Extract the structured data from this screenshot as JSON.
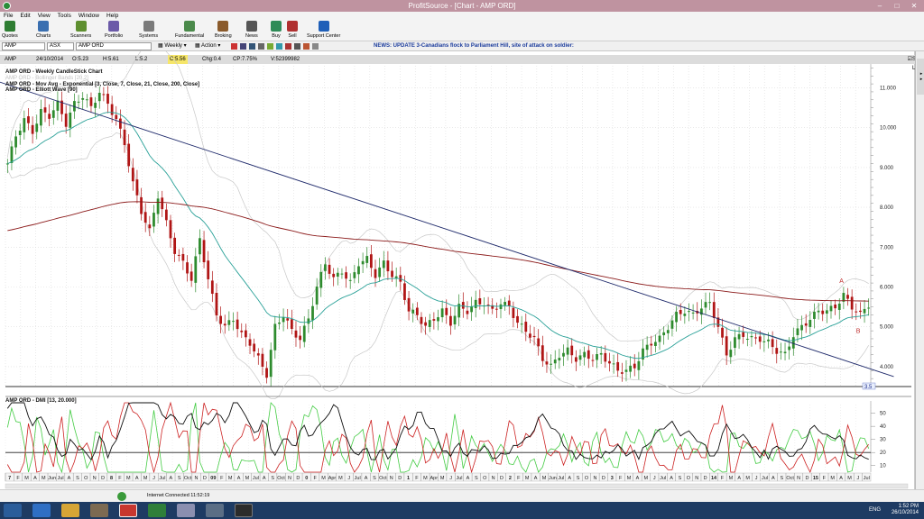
{
  "window": {
    "title": "ProfitSource - [Chart - AMP ORD]"
  },
  "menu": [
    "File",
    "Edit",
    "View",
    "Tools",
    "Window",
    "Help"
  ],
  "toolbar": [
    {
      "label": "Quotes",
      "icon": "quotes-icon",
      "color": "#2e7d32"
    },
    {
      "label": "Charts",
      "icon": "charts-icon",
      "color": "#3a6fb0"
    },
    {
      "label": "Scanners",
      "icon": "scanners-icon",
      "color": "#5e8f2f"
    },
    {
      "label": "Portfolio",
      "icon": "portfolio-icon",
      "color": "#6b5aa8"
    },
    {
      "label": "Systems",
      "icon": "systems-icon",
      "color": "#7a7a7a"
    },
    {
      "label": "Fundamental",
      "icon": "fundamental-icon",
      "color": "#4b8a4b"
    },
    {
      "label": "Broking",
      "icon": "broking-icon",
      "color": "#8a5a2b"
    },
    {
      "label": "News",
      "icon": "news-icon",
      "color": "#555555"
    },
    {
      "label": "Buy",
      "icon": "buy-icon",
      "color": "#2e8b57"
    },
    {
      "label": "Sell",
      "icon": "sell-icon",
      "color": "#b03030"
    },
    {
      "label": "Support Center",
      "icon": "help-icon",
      "color": "#1f5fb8"
    }
  ],
  "address": {
    "symbol": "AMP",
    "exchange": "ASX",
    "name": "AMP ORD",
    "weekly": "Weekly",
    "action": "Action",
    "news": "NEWS: UPDATE 3-Canadians flock to Parliament Hill, site of attack on soldier:"
  },
  "info": {
    "symbol": "AMP",
    "date": "24/10/2014",
    "open": "O:5.23",
    "high": "H:5.61",
    "low": "L:5.2",
    "close": "C:5.56",
    "chg": "Chg:0.4",
    "cp": "CP:7.75%",
    "vol": "V:52399982",
    "show_last": "Show Last"
  },
  "legend": [
    {
      "text": "AMP ORD - Weekly CandleStick Chart",
      "color": "#111111"
    },
    {
      "text": "AMP ORD - Bollinger Bands [20,2]",
      "ghost": true
    },
    {
      "text": "AMP ORD - Mov Avg - Exponential [3, Close, 7, Close, 21, Close, 200, Close]",
      "color": "#111111"
    },
    {
      "text": "AMP ORD - Elliott Wave [90]",
      "color": "#111111"
    }
  ],
  "indicator_label": "AMP ORD - DMI [13, 20.000]",
  "status": {
    "connection": "Internet Connected 11:52:19"
  },
  "taskbar": {
    "time": "1:52 PM",
    "date": "26/10/2014",
    "lang": "ENG"
  },
  "colors": {
    "bull": "#2e8b2e",
    "bear": "#b01515",
    "ema_fast": "#2aa198",
    "ema_slow": "#8b1a1a",
    "trend": "#1f2a6b",
    "bands": "#c8c8c8"
  },
  "chart_data": {
    "type": "candlestick",
    "ylim": [
      3.5,
      11.6
    ],
    "y_ticks": [
      4.0,
      5.0,
      6.0,
      7.0,
      8.0,
      9.0,
      10.0,
      11.0
    ],
    "current_price_label": "3.5",
    "close_path": [
      [
        0,
        9.1
      ],
      [
        2,
        9.8
      ],
      [
        4,
        10.2
      ],
      [
        6,
        9.9
      ],
      [
        8,
        10.4
      ],
      [
        10,
        10.3
      ],
      [
        12,
        10.6
      ],
      [
        14,
        10.1
      ],
      [
        16,
        10.6
      ],
      [
        18,
        10.8
      ],
      [
        20,
        10.5
      ],
      [
        22,
        10.9
      ],
      [
        24,
        10.6
      ],
      [
        26,
        10.2
      ],
      [
        28,
        9.6
      ],
      [
        30,
        8.6
      ],
      [
        32,
        7.9
      ],
      [
        34,
        7.4
      ],
      [
        36,
        8.3
      ],
      [
        38,
        7.6
      ],
      [
        40,
        6.9
      ],
      [
        42,
        6.6
      ],
      [
        44,
        6.2
      ],
      [
        46,
        7.2
      ],
      [
        48,
        6.2
      ],
      [
        50,
        5.3
      ],
      [
        52,
        5.0
      ],
      [
        54,
        5.2
      ],
      [
        56,
        4.8
      ],
      [
        58,
        4.6
      ],
      [
        60,
        4.2
      ],
      [
        62,
        3.8
      ],
      [
        64,
        5.0
      ],
      [
        66,
        5.3
      ],
      [
        68,
        4.9
      ],
      [
        70,
        4.7
      ],
      [
        72,
        5.2
      ],
      [
        74,
        6.0
      ],
      [
        76,
        6.6
      ],
      [
        78,
        6.2
      ],
      [
        80,
        6.4
      ],
      [
        82,
        6.1
      ],
      [
        84,
        6.6
      ],
      [
        86,
        6.7
      ],
      [
        88,
        6.3
      ],
      [
        90,
        6.6
      ],
      [
        92,
        6.3
      ],
      [
        94,
        6.1
      ],
      [
        96,
        5.4
      ],
      [
        98,
        5.3
      ],
      [
        100,
        5.0
      ],
      [
        102,
        5.2
      ],
      [
        104,
        5.4
      ],
      [
        106,
        5.1
      ],
      [
        108,
        5.5
      ],
      [
        110,
        5.4
      ],
      [
        112,
        5.6
      ],
      [
        114,
        5.6
      ],
      [
        116,
        5.4
      ],
      [
        118,
        5.6
      ],
      [
        120,
        5.5
      ],
      [
        122,
        5.1
      ],
      [
        124,
        4.9
      ],
      [
        126,
        4.7
      ],
      [
        128,
        4.2
      ],
      [
        130,
        4.0
      ],
      [
        132,
        4.3
      ],
      [
        134,
        4.4
      ],
      [
        136,
        4.2
      ],
      [
        138,
        4.3
      ],
      [
        140,
        4.2
      ],
      [
        142,
        4.3
      ],
      [
        144,
        4.1
      ],
      [
        146,
        3.9
      ],
      [
        148,
        3.9
      ],
      [
        150,
        4.0
      ],
      [
        152,
        4.4
      ],
      [
        154,
        4.6
      ],
      [
        156,
        4.7
      ],
      [
        158,
        5.0
      ],
      [
        160,
        5.3
      ],
      [
        162,
        5.4
      ],
      [
        164,
        5.3
      ],
      [
        166,
        5.5
      ],
      [
        168,
        5.6
      ],
      [
        170,
        5.0
      ],
      [
        172,
        4.3
      ],
      [
        174,
        4.7
      ],
      [
        176,
        4.8
      ],
      [
        178,
        4.7
      ],
      [
        180,
        4.7
      ],
      [
        182,
        4.6
      ],
      [
        184,
        4.4
      ],
      [
        186,
        4.3
      ],
      [
        188,
        4.8
      ],
      [
        190,
        5.0
      ],
      [
        192,
        5.2
      ],
      [
        194,
        5.4
      ],
      [
        196,
        5.4
      ],
      [
        198,
        5.5
      ],
      [
        200,
        5.8
      ],
      [
        202,
        5.5
      ],
      [
        204,
        5.3
      ],
      [
        206,
        5.56
      ]
    ],
    "trendline": [
      [
        -2,
        11.15
      ],
      [
        212,
        3.75
      ]
    ],
    "annotations": [
      {
        "text": "A",
        "x": 199,
        "y": 6.1
      },
      {
        "text": "B",
        "x": 203,
        "y": 4.85
      }
    ],
    "x_labels": [
      "7",
      "F",
      "M",
      "A",
      "M",
      "Jun",
      "Jul",
      "A",
      "S",
      "O",
      "N",
      "D",
      "8",
      "F",
      "M",
      "A",
      "M",
      "J",
      "Jul",
      "A",
      "S",
      "Oct",
      "N",
      "D",
      "09",
      "F",
      "M",
      "A",
      "M",
      "Jul",
      "A",
      "S",
      "Oct",
      "N",
      "D",
      "0",
      "F",
      "M",
      "Apr",
      "M",
      "J",
      "Jul",
      "A",
      "S",
      "Oct",
      "N",
      "D",
      "1",
      "F",
      "M",
      "Apr",
      "M",
      "J",
      "Jul",
      "A",
      "S",
      "O",
      "N",
      "D",
      "2",
      "F",
      "M",
      "A",
      "M",
      "Jun",
      "Jul",
      "A",
      "S",
      "O",
      "N",
      "D",
      "3",
      "F",
      "M",
      "A",
      "M",
      "J",
      "Jul",
      "A",
      "S",
      "O",
      "N",
      "D",
      "14",
      "F",
      "M",
      "A",
      "M",
      "J",
      "Jul",
      "A",
      "S",
      "Oct",
      "N",
      "D",
      "15",
      "F",
      "M",
      "A",
      "M",
      "J",
      "Jul"
    ],
    "dmi": {
      "ylim": [
        5,
        58
      ],
      "y_ticks": [
        10,
        20,
        30,
        40,
        50
      ],
      "reference": 20
    }
  }
}
